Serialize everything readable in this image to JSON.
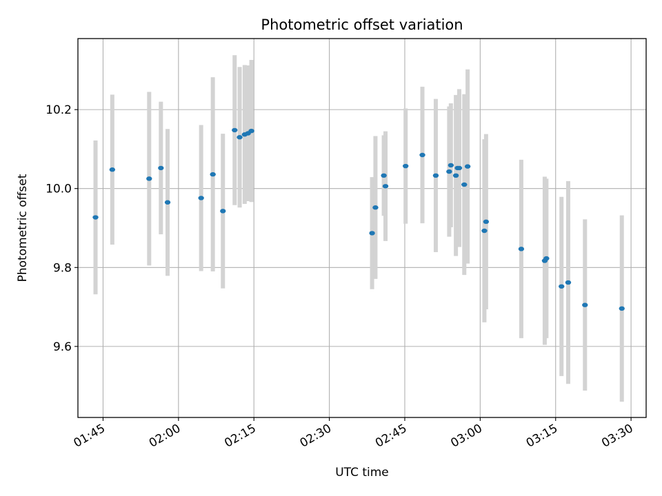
{
  "chart_data": {
    "type": "scatter",
    "title": "Photometric offset variation",
    "xlabel": "UTC time",
    "ylabel": "Photometric offset",
    "x_axis_type": "time",
    "xlim": [
      "01:40",
      "03:33"
    ],
    "ylim": [
      9.42,
      10.38
    ],
    "xticks": [
      "01:45",
      "02:00",
      "02:15",
      "02:30",
      "02:45",
      "03:00",
      "03:15",
      "03:30"
    ],
    "yticks": [
      "9.6",
      "9.8",
      "10.0",
      "10.2"
    ],
    "grid": true,
    "marker_color": "#1f77b4",
    "errorbar_color": "#d3d3d3",
    "points": [
      {
        "t": "01:43:30",
        "y": 9.927,
        "yerr": 0.195
      },
      {
        "t": "01:46:50",
        "y": 10.048,
        "yerr": 0.19
      },
      {
        "t": "01:54:10",
        "y": 10.025,
        "yerr": 0.22
      },
      {
        "t": "01:56:30",
        "y": 10.052,
        "yerr": 0.168
      },
      {
        "t": "01:57:50",
        "y": 9.965,
        "yerr": 0.186
      },
      {
        "t": "02:04:30",
        "y": 9.976,
        "yerr": 0.185
      },
      {
        "t": "02:06:50",
        "y": 10.036,
        "yerr": 0.246
      },
      {
        "t": "02:08:50",
        "y": 9.943,
        "yerr": 0.196
      },
      {
        "t": "02:11:10",
        "y": 10.148,
        "yerr": 0.19
      },
      {
        "t": "02:12:10",
        "y": 10.13,
        "yerr": 0.178
      },
      {
        "t": "02:13:10",
        "y": 10.137,
        "yerr": 0.176
      },
      {
        "t": "02:13:50",
        "y": 10.14,
        "yerr": 0.172
      },
      {
        "t": "02:14:30",
        "y": 10.146,
        "yerr": 0.18
      },
      {
        "t": "02:38:30",
        "y": 9.887,
        "yerr": 0.142
      },
      {
        "t": "02:39:10",
        "y": 9.952,
        "yerr": 0.181
      },
      {
        "t": "02:40:50",
        "y": 10.033,
        "yerr": 0.102
      },
      {
        "t": "02:41:10",
        "y": 10.006,
        "yerr": 0.139
      },
      {
        "t": "02:45:10",
        "y": 10.057,
        "yerr": 0.146
      },
      {
        "t": "02:48:30",
        "y": 10.085,
        "yerr": 0.173
      },
      {
        "t": "02:51:10",
        "y": 10.033,
        "yerr": 0.194
      },
      {
        "t": "02:53:50",
        "y": 10.043,
        "yerr": 0.165
      },
      {
        "t": "02:54:10",
        "y": 10.059,
        "yerr": 0.157
      },
      {
        "t": "02:55:10",
        "y": 10.033,
        "yerr": 0.204
      },
      {
        "t": "02:55:30",
        "y": 10.052,
        "yerr": 0.183
      },
      {
        "t": "02:55:50",
        "y": 10.052,
        "yerr": 0.2
      },
      {
        "t": "02:56:50",
        "y": 10.01,
        "yerr": 0.229
      },
      {
        "t": "02:57:30",
        "y": 10.056,
        "yerr": 0.246
      },
      {
        "t": "03:00:50",
        "y": 9.893,
        "yerr": 0.232
      },
      {
        "t": "03:01:10",
        "y": 9.916,
        "yerr": 0.222
      },
      {
        "t": "03:08:10",
        "y": 9.847,
        "yerr": 0.226
      },
      {
        "t": "03:12:50",
        "y": 9.817,
        "yerr": 0.213
      },
      {
        "t": "03:13:10",
        "y": 9.823,
        "yerr": 0.202
      },
      {
        "t": "03:16:10",
        "y": 9.752,
        "yerr": 0.227
      },
      {
        "t": "03:17:30",
        "y": 9.762,
        "yerr": 0.257
      },
      {
        "t": "03:20:50",
        "y": 9.705,
        "yerr": 0.217
      },
      {
        "t": "03:28:10",
        "y": 9.696,
        "yerr": 0.236
      }
    ]
  }
}
